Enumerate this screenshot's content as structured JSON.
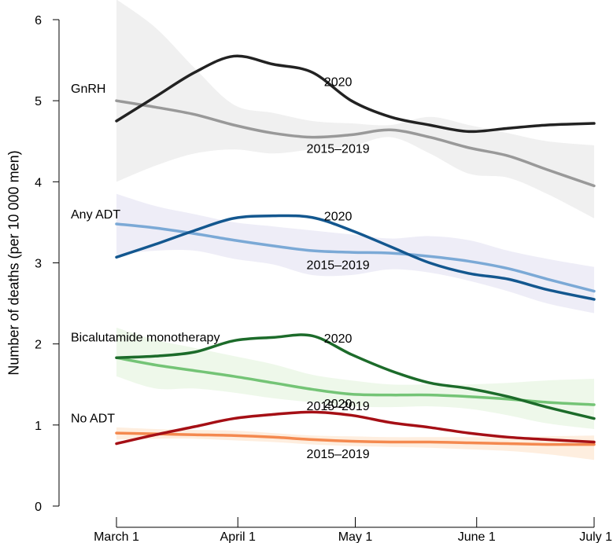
{
  "chart_data": {
    "type": "line",
    "title": "",
    "xlabel": "",
    "ylabel": "Number of deaths (per 10 000 men)",
    "ylim": [
      0,
      6
    ],
    "yticks": [
      0,
      1,
      2,
      3,
      4,
      5,
      6
    ],
    "x_ticks": [
      {
        "label": "March 1",
        "day": 0
      },
      {
        "label": "April 1",
        "day": 31
      },
      {
        "label": "May 1",
        "day": 61
      },
      {
        "label": "June 1",
        "day": 92
      },
      {
        "label": "July 1",
        "day": 122
      }
    ],
    "groups": [
      {
        "name": "GnRH",
        "label_2020": "2020",
        "label_hist": "2015–2019",
        "color_2020": "#222222",
        "color_hist": "#999999",
        "band_color": "#e6e6e6",
        "series_2020": {
          "x": [
            0,
            10,
            20,
            30,
            40,
            50,
            60,
            70,
            80,
            90,
            100,
            110,
            122
          ],
          "y": [
            4.75,
            5.05,
            5.35,
            5.55,
            5.45,
            5.35,
            5.0,
            4.8,
            4.7,
            4.62,
            4.66,
            4.7,
            4.72
          ]
        },
        "series_hist": {
          "x": [
            0,
            10,
            20,
            30,
            40,
            50,
            60,
            70,
            80,
            90,
            100,
            110,
            122
          ],
          "y": [
            5.0,
            4.92,
            4.83,
            4.7,
            4.6,
            4.55,
            4.58,
            4.64,
            4.55,
            4.42,
            4.32,
            4.15,
            3.95
          ]
        },
        "band_upper": [
          6.25,
          5.9,
          5.4,
          4.95,
          4.85,
          4.75,
          4.72,
          4.7,
          4.8,
          4.7,
          4.6,
          4.5,
          4.45
        ],
        "band_lower": [
          4.0,
          4.2,
          4.35,
          4.4,
          4.35,
          4.4,
          4.44,
          4.55,
          4.35,
          4.1,
          4.05,
          3.85,
          3.55
        ]
      },
      {
        "name": "Any ADT",
        "label_2020": "2020",
        "label_hist": "2015–2019",
        "color_2020": "#13578f",
        "color_hist": "#7ba9d6",
        "band_color": "#e3e1f1",
        "series_2020": {
          "x": [
            0,
            10,
            20,
            30,
            40,
            50,
            60,
            70,
            80,
            90,
            100,
            110,
            122
          ],
          "y": [
            3.07,
            3.23,
            3.4,
            3.55,
            3.58,
            3.56,
            3.4,
            3.2,
            3.0,
            2.87,
            2.8,
            2.67,
            2.55
          ]
        },
        "series_hist": {
          "x": [
            0,
            10,
            20,
            30,
            40,
            50,
            60,
            70,
            80,
            90,
            100,
            110,
            122
          ],
          "y": [
            3.48,
            3.43,
            3.36,
            3.28,
            3.21,
            3.15,
            3.13,
            3.12,
            3.08,
            3.02,
            2.93,
            2.8,
            2.65
          ]
        },
        "band_upper": [
          3.85,
          3.7,
          3.6,
          3.5,
          3.45,
          3.4,
          3.35,
          3.3,
          3.33,
          3.28,
          3.15,
          3.05,
          2.95
        ],
        "band_lower": [
          3.1,
          3.15,
          3.15,
          3.05,
          2.98,
          2.85,
          2.85,
          2.92,
          2.88,
          2.78,
          2.65,
          2.5,
          2.38
        ]
      },
      {
        "name": "Bicalutamide monotherapy",
        "label_2020": "2020",
        "label_hist": "2015–2019",
        "color_2020": "#1c6b2a",
        "color_hist": "#74c476",
        "band_color": "#e3f3dc",
        "series_2020": {
          "x": [
            0,
            10,
            20,
            30,
            40,
            50,
            60,
            70,
            80,
            90,
            100,
            110,
            122
          ],
          "y": [
            1.83,
            1.85,
            1.9,
            2.04,
            2.08,
            2.1,
            1.87,
            1.67,
            1.52,
            1.45,
            1.35,
            1.22,
            1.08
          ]
        },
        "series_hist": {
          "x": [
            0,
            10,
            20,
            30,
            40,
            50,
            60,
            70,
            80,
            90,
            100,
            110,
            122
          ],
          "y": [
            1.83,
            1.74,
            1.67,
            1.6,
            1.52,
            1.44,
            1.38,
            1.37,
            1.37,
            1.35,
            1.32,
            1.28,
            1.25
          ]
        },
        "band_upper": [
          2.2,
          2.05,
          1.95,
          1.85,
          1.75,
          1.62,
          1.55,
          1.5,
          1.5,
          1.5,
          1.52,
          1.55,
          1.57
        ],
        "band_lower": [
          1.6,
          1.45,
          1.45,
          1.4,
          1.33,
          1.28,
          1.23,
          1.22,
          1.23,
          1.2,
          1.12,
          1.02,
          0.95
        ]
      },
      {
        "name": "No ADT",
        "label_2020": "2020",
        "label_hist": "2015–2019",
        "color_2020": "#a50f15",
        "color_hist": "#f4894f",
        "band_color": "#fde3c9",
        "series_2020": {
          "x": [
            0,
            10,
            20,
            30,
            40,
            50,
            60,
            70,
            80,
            90,
            100,
            110,
            122
          ],
          "y": [
            0.77,
            0.88,
            0.98,
            1.08,
            1.13,
            1.16,
            1.12,
            1.03,
            0.97,
            0.9,
            0.85,
            0.82,
            0.79
          ]
        },
        "series_hist": {
          "x": [
            0,
            10,
            20,
            30,
            40,
            50,
            60,
            70,
            80,
            90,
            100,
            110,
            122
          ],
          "y": [
            0.9,
            0.89,
            0.88,
            0.87,
            0.85,
            0.82,
            0.8,
            0.79,
            0.79,
            0.78,
            0.77,
            0.76,
            0.76
          ]
        },
        "band_upper": [
          0.97,
          0.95,
          0.94,
          0.93,
          0.9,
          0.87,
          0.86,
          0.85,
          0.85,
          0.85,
          0.85,
          0.86,
          0.87
        ],
        "band_lower": [
          0.82,
          0.83,
          0.83,
          0.81,
          0.79,
          0.76,
          0.74,
          0.73,
          0.72,
          0.7,
          0.68,
          0.64,
          0.57
        ]
      }
    ]
  }
}
